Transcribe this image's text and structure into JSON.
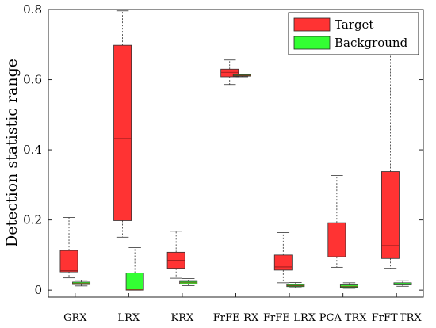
{
  "chart_data": {
    "type": "boxplot",
    "ylabel": "Detection statistic range",
    "ylim": [
      -0.02,
      0.8
    ],
    "yticks": [
      0,
      0.2,
      0.4,
      0.6,
      0.8
    ],
    "ytick_labels": [
      "0",
      "0.2",
      "0.4",
      "0.6",
      "0.8"
    ],
    "grid": false,
    "legend_position": "top-right",
    "categories": [
      "GRX",
      "LRX",
      "KRX",
      "FrFE-RX",
      "FrFE-LRX",
      "PCA-TRX",
      "FrFT-TRX"
    ],
    "series": [
      {
        "name": "Target",
        "color": "#ff3333",
        "boxes": [
          {
            "whisker_low": 0.035,
            "q1": 0.052,
            "median": 0.056,
            "q3": 0.113,
            "whisker_high": 0.207
          },
          {
            "whisker_low": 0.151,
            "q1": 0.198,
            "median": 0.432,
            "q3": 0.698,
            "whisker_high": 0.796
          },
          {
            "whisker_low": 0.034,
            "q1": 0.062,
            "median": 0.085,
            "q3": 0.108,
            "whisker_high": 0.168
          },
          {
            "whisker_low": 0.586,
            "q1": 0.608,
            "median": 0.621,
            "q3": 0.63,
            "whisker_high": 0.656
          },
          {
            "whisker_low": 0.021,
            "q1": 0.057,
            "median": 0.066,
            "q3": 0.1,
            "whisker_high": 0.164
          },
          {
            "whisker_low": 0.065,
            "q1": 0.095,
            "median": 0.126,
            "q3": 0.192,
            "whisker_high": 0.327
          },
          {
            "whisker_low": 0.062,
            "q1": 0.09,
            "median": 0.127,
            "q3": 0.338,
            "whisker_high": 0.735
          }
        ]
      },
      {
        "name": "Background",
        "color": "#33ff33",
        "boxes": [
          {
            "whisker_low": 0.012,
            "q1": 0.016,
            "median": 0.019,
            "q3": 0.023,
            "whisker_high": 0.028
          },
          {
            "whisker_low": 0.0,
            "q1": 0.0,
            "median": 0.001,
            "q3": 0.049,
            "whisker_high": 0.121
          },
          {
            "whisker_low": 0.013,
            "q1": 0.017,
            "median": 0.021,
            "q3": 0.025,
            "whisker_high": 0.033
          },
          {
            "whisker_low": 0.608,
            "q1": 0.61,
            "median": 0.612,
            "q3": 0.614,
            "whisker_high": 0.616
          },
          {
            "whisker_low": 0.007,
            "q1": 0.01,
            "median": 0.013,
            "q3": 0.016,
            "whisker_high": 0.022
          },
          {
            "whisker_low": 0.005,
            "q1": 0.008,
            "median": 0.011,
            "q3": 0.015,
            "whisker_high": 0.021
          },
          {
            "whisker_low": 0.011,
            "q1": 0.015,
            "median": 0.017,
            "q3": 0.021,
            "whisker_high": 0.028
          }
        ]
      }
    ]
  }
}
